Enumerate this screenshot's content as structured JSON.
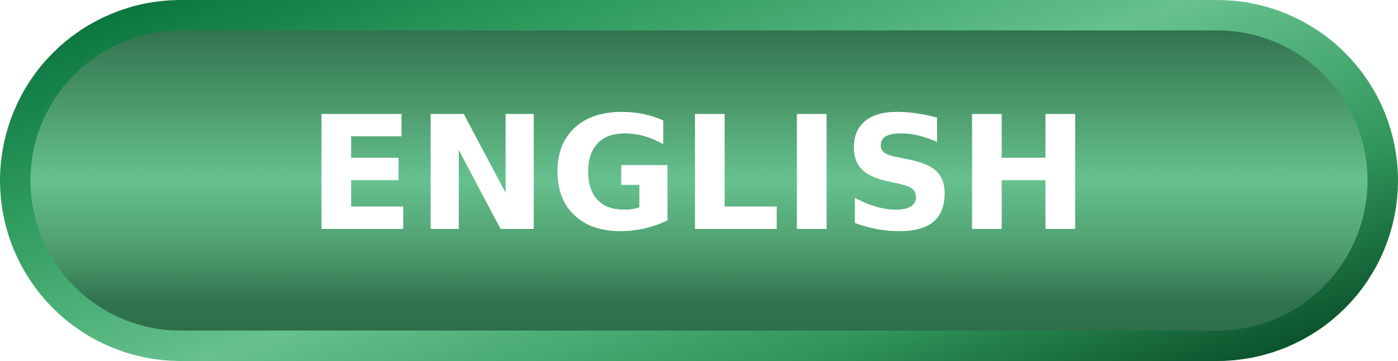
{
  "button": {
    "label": "ENGLISH"
  },
  "colors": {
    "outer_dark": "#006a35",
    "outer_light": "#66c18f",
    "inner_dark": "#317350",
    "inner_light": "#66c18f",
    "text": "#ffffff"
  }
}
